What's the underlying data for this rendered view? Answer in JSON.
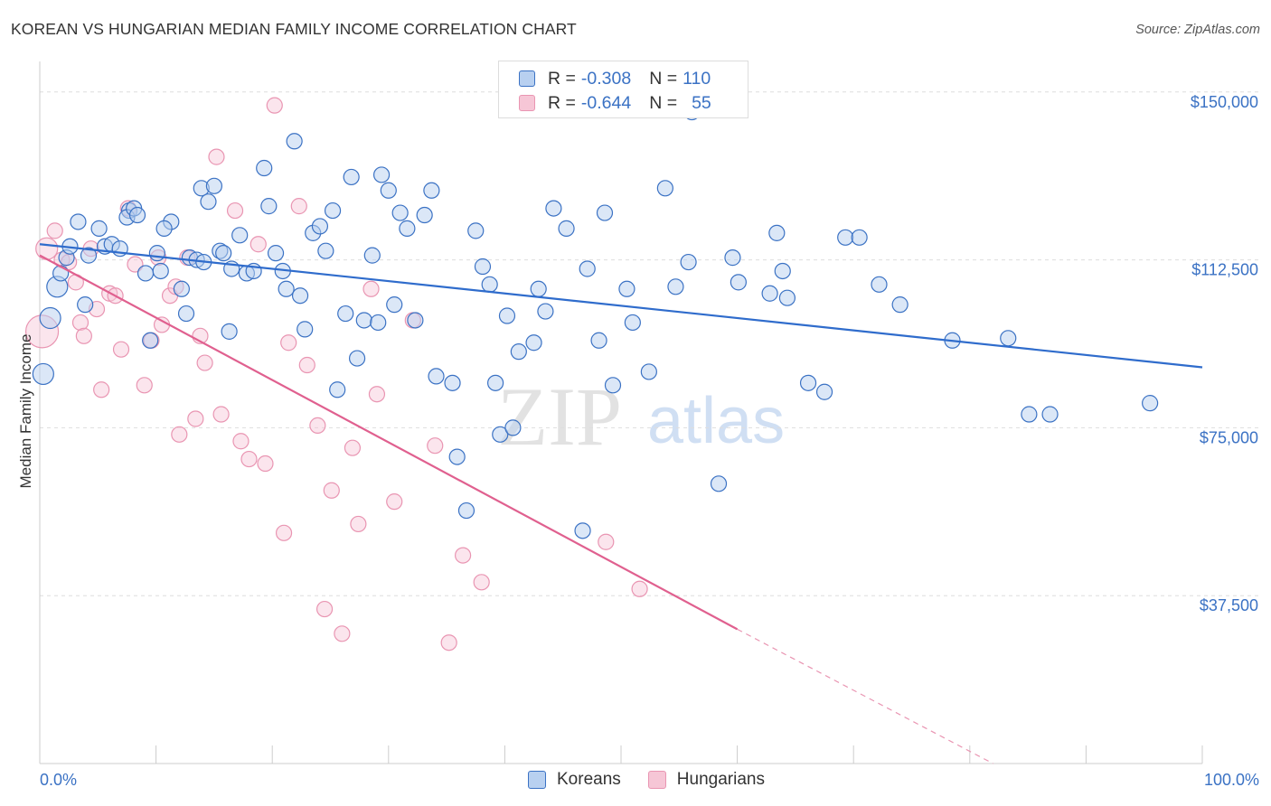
{
  "title": "KOREAN VS HUNGARIAN MEDIAN FAMILY INCOME CORRELATION CHART",
  "source": "Source: ZipAtlas.com",
  "watermark": {
    "part1": "ZIP",
    "part2": "atlas"
  },
  "colors": {
    "blue": "#3b72c4",
    "blue_fill": "#b8d0f0",
    "blue_line": "#2f6ccc",
    "pink_fill": "#f6c6d6",
    "pink_line": "#e0608f",
    "pink_stroke": "#e995b2",
    "grid": "#dddddd",
    "axis": "#cccccc"
  },
  "legend": {
    "rows": [
      {
        "r_label": "R =",
        "r_value": "-0.308",
        "n_label": "N =",
        "n_value": "110",
        "series": "Koreans"
      },
      {
        "r_label": "R =",
        "r_value": "-0.644",
        "n_label": "N =",
        "n_value": "55",
        "series": "Hungarians"
      }
    ]
  },
  "bottom_legend": [
    "Koreans",
    "Hungarians"
  ],
  "chart_data": {
    "type": "scatter",
    "title": "KOREAN VS HUNGARIAN MEDIAN FAMILY INCOME CORRELATION CHART",
    "xlabel": "",
    "ylabel": "Median Family Income",
    "x_tick_labels": [
      "0.0%",
      "100.0%"
    ],
    "y_tick_labels": [
      "$37,500",
      "$75,000",
      "$112,500",
      "$150,000"
    ],
    "y_ticks": [
      37500,
      75000,
      112500,
      150000
    ],
    "xlim": [
      0,
      100
    ],
    "ylim": [
      0,
      155000
    ],
    "grid": true,
    "legend_position": "top-center",
    "series": [
      {
        "name": "Koreans",
        "color": "#3b72c4",
        "trend": {
          "x": [
            0,
            100
          ],
          "y": [
            116000,
            88500
          ]
        },
        "points": [
          [
            0.3,
            87000
          ],
          [
            1.5,
            106500
          ],
          [
            0.9,
            99500
          ],
          [
            1.8,
            109500
          ],
          [
            2.3,
            113000
          ],
          [
            3.3,
            121000
          ],
          [
            4.2,
            113500
          ],
          [
            2.6,
            115500
          ],
          [
            5.1,
            119500
          ],
          [
            5.6,
            115500
          ],
          [
            6.2,
            116000
          ],
          [
            3.9,
            102500
          ],
          [
            6.9,
            115000
          ],
          [
            7.7,
            123500
          ],
          [
            7.5,
            122000
          ],
          [
            8.1,
            124000
          ],
          [
            8.4,
            122500
          ],
          [
            9.1,
            109500
          ],
          [
            10.1,
            114000
          ],
          [
            9.5,
            94500
          ],
          [
            10.4,
            110000
          ],
          [
            11.3,
            121000
          ],
          [
            10.7,
            119500
          ],
          [
            12.2,
            106000
          ],
          [
            12.9,
            113000
          ],
          [
            12.6,
            100500
          ],
          [
            13.5,
            112500
          ],
          [
            13.9,
            128500
          ],
          [
            14.5,
            125500
          ],
          [
            15.0,
            129000
          ],
          [
            14.1,
            112000
          ],
          [
            15.5,
            114500
          ],
          [
            16.3,
            96500
          ],
          [
            15.8,
            114000
          ],
          [
            17.2,
            118000
          ],
          [
            16.5,
            110500
          ],
          [
            17.8,
            109500
          ],
          [
            18.4,
            110000
          ],
          [
            19.3,
            133000
          ],
          [
            19.7,
            124500
          ],
          [
            20.3,
            114000
          ],
          [
            20.9,
            110000
          ],
          [
            21.9,
            139000
          ],
          [
            21.2,
            106000
          ],
          [
            22.4,
            104500
          ],
          [
            22.8,
            97000
          ],
          [
            23.5,
            118500
          ],
          [
            24.1,
            120000
          ],
          [
            24.6,
            114500
          ],
          [
            25.2,
            123500
          ],
          [
            25.6,
            83500
          ],
          [
            26.3,
            100500
          ],
          [
            26.8,
            131000
          ],
          [
            27.3,
            90500
          ],
          [
            27.9,
            99000
          ],
          [
            28.6,
            113500
          ],
          [
            29.1,
            98500
          ],
          [
            29.4,
            131500
          ],
          [
            30.0,
            128000
          ],
          [
            30.5,
            102500
          ],
          [
            31.0,
            123000
          ],
          [
            31.6,
            119500
          ],
          [
            32.3,
            99000
          ],
          [
            33.1,
            122500
          ],
          [
            33.7,
            128000
          ],
          [
            34.1,
            86500
          ],
          [
            35.5,
            85000
          ],
          [
            35.9,
            68500
          ],
          [
            36.7,
            56500
          ],
          [
            37.5,
            119000
          ],
          [
            38.1,
            111000
          ],
          [
            38.7,
            107000
          ],
          [
            39.2,
            85000
          ],
          [
            39.6,
            73500
          ],
          [
            40.2,
            100000
          ],
          [
            40.7,
            75000
          ],
          [
            41.2,
            92000
          ],
          [
            42.5,
            94000
          ],
          [
            42.9,
            106000
          ],
          [
            43.5,
            101000
          ],
          [
            44.2,
            124000
          ],
          [
            45.3,
            119500
          ],
          [
            46.7,
            52000
          ],
          [
            47.1,
            110500
          ],
          [
            48.1,
            94500
          ],
          [
            48.6,
            123000
          ],
          [
            49.3,
            84500
          ],
          [
            50.5,
            106000
          ],
          [
            51.0,
            98500
          ],
          [
            52.4,
            87500
          ],
          [
            53.8,
            128500
          ],
          [
            54.7,
            106500
          ],
          [
            55.8,
            112000
          ],
          [
            56.1,
            145500
          ],
          [
            58.4,
            62500
          ],
          [
            59.6,
            113000
          ],
          [
            60.1,
            107500
          ],
          [
            62.8,
            105000
          ],
          [
            63.4,
            118500
          ],
          [
            63.9,
            110000
          ],
          [
            64.3,
            104000
          ],
          [
            66.1,
            85000
          ],
          [
            67.5,
            83000
          ],
          [
            69.3,
            117500
          ],
          [
            70.5,
            117500
          ],
          [
            72.2,
            107000
          ],
          [
            74.0,
            102500
          ],
          [
            78.5,
            94500
          ],
          [
            83.3,
            95000
          ],
          [
            85.1,
            78000
          ],
          [
            86.9,
            78000
          ],
          [
            95.5,
            80500
          ]
        ]
      },
      {
        "name": "Hungarians",
        "color": "#f6c6d6",
        "trend": {
          "x": [
            0,
            60
          ],
          "y": [
            113500,
            30000
          ],
          "dashed_to": {
            "x": 82,
            "y": 0
          }
        },
        "points": [
          [
            0.2,
            96500
          ],
          [
            0.6,
            115000
          ],
          [
            1.3,
            119000
          ],
          [
            1.9,
            112500
          ],
          [
            2.5,
            112000
          ],
          [
            3.1,
            107500
          ],
          [
            3.5,
            98500
          ],
          [
            3.8,
            95500
          ],
          [
            4.4,
            115000
          ],
          [
            4.9,
            101500
          ],
          [
            5.3,
            83500
          ],
          [
            6.0,
            105000
          ],
          [
            6.5,
            104500
          ],
          [
            7.0,
            92500
          ],
          [
            7.6,
            124000
          ],
          [
            8.2,
            111500
          ],
          [
            9.0,
            84500
          ],
          [
            9.6,
            94500
          ],
          [
            10.2,
            113000
          ],
          [
            10.5,
            98000
          ],
          [
            11.2,
            104500
          ],
          [
            11.7,
            106500
          ],
          [
            12.0,
            73500
          ],
          [
            12.7,
            113000
          ],
          [
            13.4,
            77000
          ],
          [
            13.8,
            95500
          ],
          [
            14.2,
            89500
          ],
          [
            15.2,
            135500
          ],
          [
            15.6,
            78000
          ],
          [
            16.8,
            123500
          ],
          [
            17.3,
            72000
          ],
          [
            18.0,
            68000
          ],
          [
            18.8,
            116000
          ],
          [
            19.4,
            67000
          ],
          [
            20.2,
            147000
          ],
          [
            21.0,
            51500
          ],
          [
            21.4,
            94000
          ],
          [
            22.3,
            124500
          ],
          [
            23.0,
            89000
          ],
          [
            23.9,
            75500
          ],
          [
            24.5,
            34500
          ],
          [
            25.1,
            61000
          ],
          [
            26.0,
            29000
          ],
          [
            26.9,
            70500
          ],
          [
            27.4,
            53500
          ],
          [
            28.5,
            106000
          ],
          [
            29.0,
            82500
          ],
          [
            30.5,
            58500
          ],
          [
            32.1,
            99000
          ],
          [
            34.0,
            71000
          ],
          [
            35.2,
            27000
          ],
          [
            36.4,
            46500
          ],
          [
            38.0,
            40500
          ],
          [
            48.7,
            49500
          ],
          [
            51.6,
            39000
          ]
        ]
      }
    ]
  }
}
